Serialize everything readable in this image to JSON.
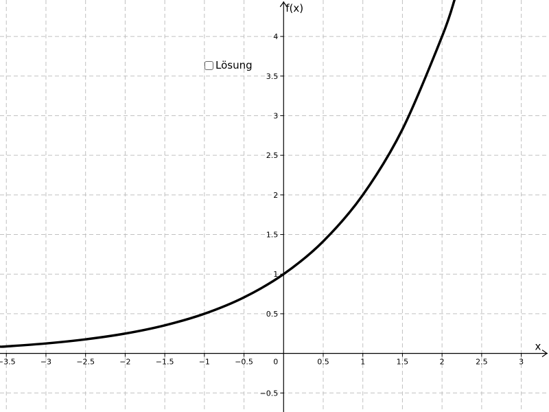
{
  "chart_data": {
    "type": "line",
    "title": "",
    "xlabel": "x",
    "ylabel": "f(x)",
    "xlim": [
      -3.58,
      3.35
    ],
    "ylim": [
      -0.74,
      4.46
    ],
    "grid": true,
    "x_ticks": [
      {
        "value": -3.5,
        "label": "−3.5"
      },
      {
        "value": -3,
        "label": "−3"
      },
      {
        "value": -2.5,
        "label": "−2.5"
      },
      {
        "value": -2,
        "label": "−2"
      },
      {
        "value": -1.5,
        "label": "−1.5"
      },
      {
        "value": -1,
        "label": "−1"
      },
      {
        "value": -0.5,
        "label": "−0.5"
      },
      {
        "value": 0.5,
        "label": "0.5"
      },
      {
        "value": 1,
        "label": "1"
      },
      {
        "value": 1.5,
        "label": "1.5"
      },
      {
        "value": 2,
        "label": "2"
      },
      {
        "value": 2.5,
        "label": "2.5"
      },
      {
        "value": 3,
        "label": "3"
      }
    ],
    "y_ticks": [
      {
        "value": -0.5,
        "label": "−0.5"
      },
      {
        "value": 0.5,
        "label": "0.5"
      },
      {
        "value": 1,
        "label": "1"
      },
      {
        "value": 1.5,
        "label": "1.5"
      },
      {
        "value": 2,
        "label": "2"
      },
      {
        "value": 2.5,
        "label": "2.5"
      },
      {
        "value": 3,
        "label": "3"
      },
      {
        "value": 3.5,
        "label": "3.5"
      },
      {
        "value": 4,
        "label": "4"
      }
    ],
    "origin_label": "0",
    "series": [
      {
        "x": [
          -3.58,
          -3.5,
          -3,
          -2.5,
          -2,
          -1.5,
          -1,
          -0.5,
          0,
          0.5,
          1,
          1.5,
          2,
          2.16
        ],
        "y": [
          0.084,
          0.088,
          0.125,
          0.177,
          0.25,
          0.354,
          0.5,
          0.707,
          1,
          1.414,
          2,
          2.828,
          4,
          4.47
        ]
      }
    ]
  },
  "controls": {
    "solution_label": "Lösung",
    "solution_checked": false
  }
}
